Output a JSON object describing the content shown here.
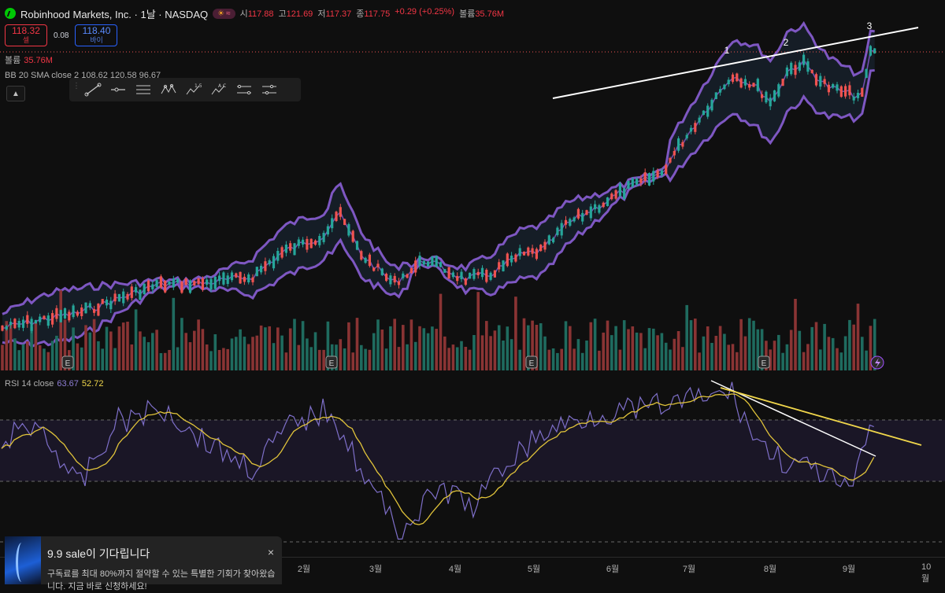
{
  "header": {
    "title": "Robinhood Markets, Inc. · 1날 · NASDAQ",
    "open_label": "시",
    "open": "117.88",
    "high_label": "고",
    "high": "121.69",
    "low_label": "저",
    "low": "117.37",
    "close_label": "종",
    "close": "117.75",
    "change": "+0.29 (+0.25%)",
    "volume_label": "볼륨",
    "volume": "35.76M"
  },
  "trade": {
    "sell_price": "118.32",
    "sell_label": "셀",
    "spread": "0.08",
    "buy_price": "118.40",
    "buy_label": "바이"
  },
  "volume_legend": {
    "label": "볼륨",
    "value": "35.76M"
  },
  "bb_legend": "BB 20 SMA close 2  108.62  120.58  96.67",
  "rsi_legend": {
    "label": "RSI 14 close",
    "rsi": "63.67",
    "ma": "52.72"
  },
  "annotations": [
    "1",
    "2",
    "3"
  ],
  "x_axis": [
    "2월",
    "3월",
    "4월",
    "5월",
    "6월",
    "7월",
    "8월",
    "9월",
    "10월"
  ],
  "earnings_marker": "E",
  "toolbar_icons": [
    "trend-line-icon",
    "horizontal-ray-icon",
    "parallel-channel-icon",
    "xabcd-pattern-icon",
    "elliott-wave-icon",
    "abcd-pattern-icon",
    "fib-retracement-icon",
    "settings-icon"
  ],
  "notice": {
    "title": "9.9 sale이 기다립니다",
    "body": "구독료를 최대 80%까지 절약할 수 있는 특별한 기회가 찾아왔습니다. 지금 바로 신청하세요!",
    "close": "×"
  },
  "colors": {
    "up": "#26a69a",
    "down": "#ef5350",
    "bb": "#7e57c2",
    "rsi": "#7e6fc9",
    "rsi_ma": "#e0c33a",
    "trend": "#ffffff"
  }
}
